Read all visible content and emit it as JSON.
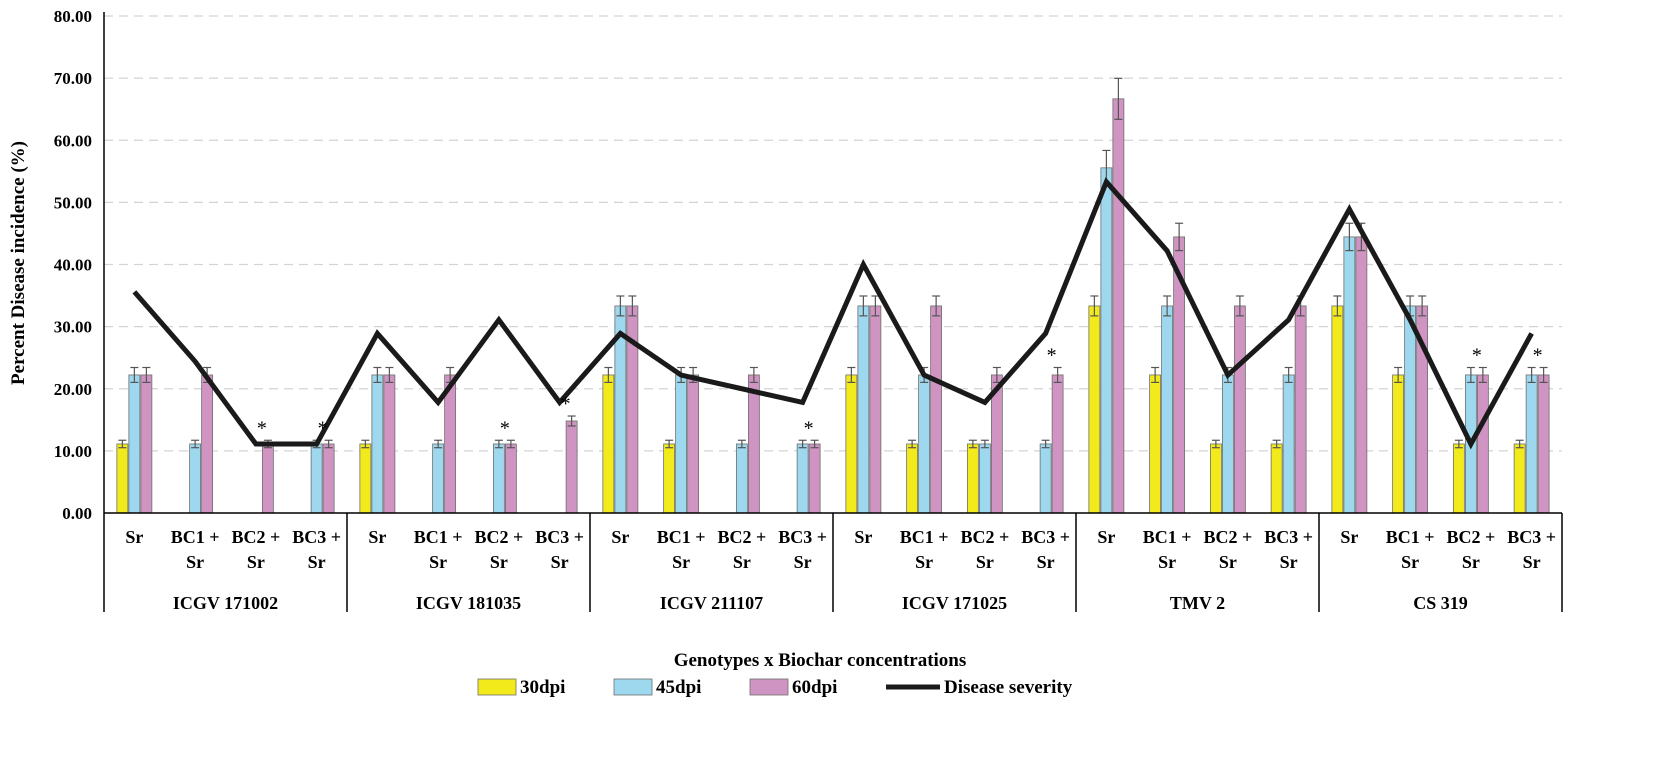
{
  "colors": {
    "dpi30": "#f2ea1b",
    "dpi45": "#9ed8ef",
    "dpi60": "#cf94c2",
    "severity": "#1a1a1a",
    "grid": "#d4d4d4",
    "axis": "#000000"
  },
  "chart_data": {
    "type": "bar",
    "title": "",
    "xlabel": "Genotypes x Biochar concentrations",
    "ylabel": "Percent Disease incidence (%)",
    "ylim": [
      0,
      80
    ],
    "yticks": [
      "0.00",
      "10.00",
      "20.00",
      "30.00",
      "40.00",
      "50.00",
      "60.00",
      "70.00",
      "80.00"
    ],
    "grid": true,
    "legend_position": "bottom",
    "groups": [
      "ICGV 171002",
      "ICGV 181035",
      "ICGV 211107",
      "ICGV 171025",
      "TMV 2",
      "CS 319"
    ],
    "treatments": [
      {
        "line1": "Sr",
        "line2": ""
      },
      {
        "line1": "BC1 +",
        "line2": "Sr"
      },
      {
        "line1": "BC2 +",
        "line2": "Sr"
      },
      {
        "line1": "BC3 +",
        "line2": "Sr"
      }
    ],
    "series": [
      {
        "name": "30dpi",
        "values": [
          11.11,
          0,
          0,
          0,
          11.11,
          0,
          0,
          0,
          22.22,
          11.11,
          0,
          0,
          22.22,
          11.11,
          11.11,
          0,
          33.33,
          22.22,
          11.11,
          11.11,
          33.33,
          22.22,
          11.11,
          11.11
        ]
      },
      {
        "name": "45dpi",
        "values": [
          22.22,
          11.11,
          0,
          11.11,
          22.22,
          11.11,
          11.11,
          0,
          33.33,
          22.22,
          11.11,
          11.11,
          33.33,
          22.22,
          11.11,
          11.11,
          55.56,
          33.33,
          22.22,
          22.22,
          44.44,
          33.33,
          22.22,
          22.22
        ]
      },
      {
        "name": "60dpi",
        "values": [
          22.22,
          22.22,
          11.11,
          11.11,
          22.22,
          22.22,
          11.11,
          14.81,
          33.33,
          22.22,
          22.22,
          11.11,
          33.33,
          33.33,
          22.22,
          22.22,
          66.67,
          44.44,
          33.33,
          33.33,
          44.44,
          33.33,
          22.22,
          22.22
        ]
      }
    ],
    "error": [
      [
        0.6,
        0,
        0,
        0,
        0.6,
        0,
        0,
        0,
        1.2,
        0.6,
        0,
        0,
        1.2,
        0.6,
        0.6,
        0,
        1.6,
        1.2,
        0.6,
        0.6,
        1.6,
        1.2,
        0.6,
        0.6
      ],
      [
        1.2,
        0.6,
        0,
        0.6,
        1.2,
        0.6,
        0.6,
        0,
        1.6,
        1.2,
        0.6,
        0.6,
        1.6,
        1.2,
        0.6,
        0.6,
        2.8,
        1.6,
        1.2,
        1.2,
        2.2,
        1.6,
        1.2,
        1.2
      ],
      [
        1.2,
        1.2,
        0.6,
        0.6,
        1.2,
        1.2,
        0.6,
        0.8,
        1.6,
        1.2,
        1.2,
        0.6,
        1.6,
        1.6,
        1.2,
        1.2,
        3.3,
        2.2,
        1.6,
        1.6,
        2.2,
        1.6,
        1.2,
        1.2
      ]
    ],
    "line_series": {
      "name": "Disease severity",
      "values": [
        35.6,
        24.4,
        11.1,
        11.1,
        28.9,
        17.8,
        31.1,
        17.8,
        28.9,
        22.2,
        20.0,
        17.8,
        40.0,
        22.2,
        17.8,
        28.9,
        53.3,
        42.2,
        22.2,
        31.1,
        48.9,
        31.1,
        11.1,
        28.9
      ]
    },
    "significance": {
      "symbol": "*",
      "indices": [
        2,
        3,
        6,
        7,
        11,
        15,
        22,
        23
      ]
    }
  }
}
